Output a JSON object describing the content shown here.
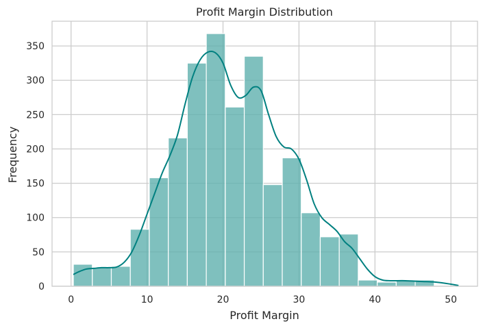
{
  "chart_data": {
    "type": "bar",
    "title": "Profit Margin Distribution",
    "xlabel": "Profit Margin",
    "ylabel": "Frequency",
    "xlim": [
      -2.5,
      53.5
    ],
    "ylim": [
      0,
      386
    ],
    "xticks": [
      0,
      10,
      20,
      30,
      40,
      50
    ],
    "yticks": [
      0,
      50,
      100,
      150,
      200,
      250,
      300,
      350
    ],
    "grid": true,
    "bin_edges": [
      0.3,
      2.8,
      5.3,
      7.8,
      10.3,
      12.8,
      15.3,
      17.8,
      20.3,
      22.8,
      25.3,
      27.8,
      30.3,
      32.8,
      35.3,
      37.8,
      40.3,
      42.8,
      45.3,
      47.8
    ],
    "values": [
      32,
      27,
      29,
      83,
      158,
      216,
      325,
      368,
      261,
      335,
      148,
      187,
      107,
      72,
      76,
      9,
      6,
      9,
      9
    ],
    "kde": {
      "x": [
        0.3,
        1,
        2,
        3,
        4,
        5,
        6,
        7,
        8,
        9,
        10,
        11,
        12,
        13,
        14,
        15,
        16,
        17,
        18,
        19,
        20,
        21,
        22,
        23,
        24,
        25,
        26,
        27,
        28,
        29,
        30,
        31,
        32,
        33,
        34,
        35,
        36,
        37,
        38,
        39,
        40,
        41,
        42,
        44,
        46,
        48,
        50,
        51
      ],
      "y": [
        17,
        21,
        25,
        26,
        27,
        27,
        28,
        35,
        50,
        75,
        105,
        135,
        165,
        190,
        220,
        265,
        305,
        330,
        341,
        340,
        325,
        293,
        275,
        278,
        290,
        285,
        250,
        218,
        203,
        200,
        185,
        155,
        120,
        100,
        90,
        80,
        65,
        55,
        40,
        25,
        14,
        9,
        8,
        8,
        7,
        6,
        3,
        1
      ]
    },
    "colors": {
      "bar_fill": "#5fb0ae",
      "bar_stroke": "#ffffff",
      "kde_line": "#008080",
      "grid": "#cccccc",
      "axes_edge": "#cccccc"
    }
  }
}
